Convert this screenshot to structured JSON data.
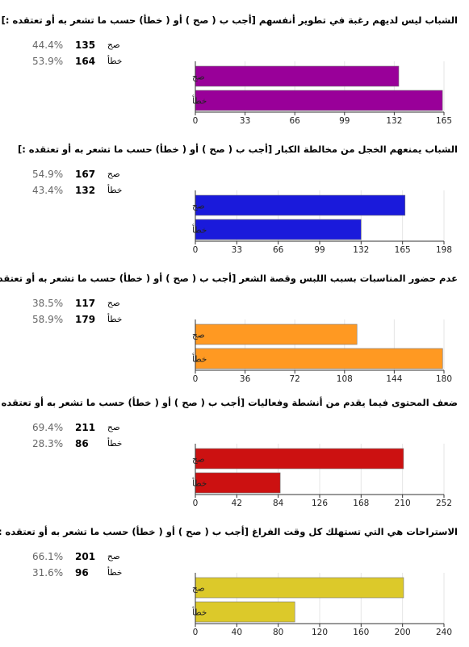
{
  "chart_data": [
    {
      "type": "bar",
      "title": "الشباب ليس لديهم رغبة في تطوير أنفسهم [أجب ب ( صح ) أو ( خطأ) حسب ما تشعر به أو تعتقده :]",
      "categories": [
        "صح",
        "خطأ"
      ],
      "values": [
        135,
        164
      ],
      "percentages": [
        "44.4%",
        "53.9%"
      ],
      "xlim": [
        0,
        165
      ],
      "ticks": [
        0,
        33,
        66,
        99,
        132,
        165
      ],
      "color": "#990099"
    },
    {
      "type": "bar",
      "title": "الشباب يمنعهم الخجل من مخالطة الكبار [أجب ب ( صح ) أو ( خطأ) حسب ما تشعر به أو تعتقده :]",
      "categories": [
        "صح",
        "خطأ"
      ],
      "values": [
        167,
        132
      ],
      "percentages": [
        "54.9%",
        "43.4%"
      ],
      "xlim": [
        0,
        198
      ],
      "ticks": [
        0,
        33,
        66,
        99,
        132,
        165,
        198
      ],
      "color": "#1a1adb"
    },
    {
      "type": "bar",
      "title": "عدم حضور المناسبات بسبب اللبس وقصة الشعر [أجب ب ( صح ) أو ( خطأ) حسب ما تشعر به أو تعتقده :]",
      "categories": [
        "صح",
        "خطأ"
      ],
      "values": [
        117,
        179
      ],
      "percentages": [
        "38.5%",
        "58.9%"
      ],
      "xlim": [
        0,
        180
      ],
      "ticks": [
        0,
        36,
        72,
        108,
        144,
        180
      ],
      "color": "#ff9922"
    },
    {
      "type": "bar",
      "title": "ضعف المحتوى فيما يقدم من أنشطة وفعاليات [أجب ب ( صح ) أو ( خطأ) حسب ما تشعر به أو تعتقده :]",
      "categories": [
        "صح",
        "خطأ"
      ],
      "values": [
        211,
        86
      ],
      "percentages": [
        "69.4%",
        "28.3%"
      ],
      "xlim": [
        0,
        252
      ],
      "ticks": [
        0,
        42,
        84,
        126,
        168,
        210,
        252
      ],
      "color": "#cc1111"
    },
    {
      "type": "bar",
      "title": "الاستراحات هي التي تستهلك كل وقت الفراغ [أجب ب ( صح ) أو ( خطأ) حسب ما تشعر به أو تعتقده :]",
      "categories": [
        "صح",
        "خطأ"
      ],
      "values": [
        201,
        96
      ],
      "percentages": [
        "66.1%",
        "31.6%"
      ],
      "xlim": [
        0,
        240
      ],
      "ticks": [
        0,
        40,
        80,
        120,
        160,
        200,
        240
      ],
      "color": "#dcc92a"
    }
  ]
}
